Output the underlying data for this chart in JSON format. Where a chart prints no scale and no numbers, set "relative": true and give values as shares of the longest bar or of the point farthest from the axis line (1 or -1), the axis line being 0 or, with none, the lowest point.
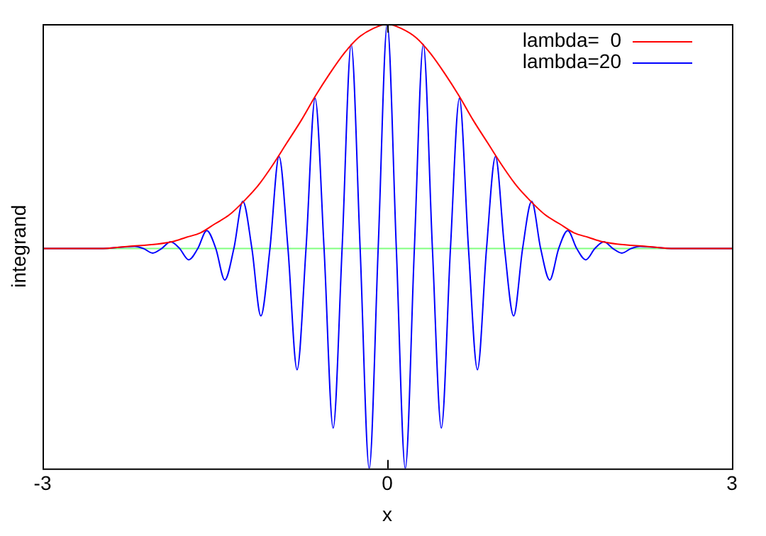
{
  "chart_data": {
    "type": "line",
    "xlabel": "x",
    "ylabel": "integrand",
    "relative": true,
    "xlim": [
      -3,
      3
    ],
    "xticks": [
      -3,
      0,
      3
    ],
    "grid": false,
    "legend": "top right",
    "marker": "none",
    "line_style": "solid",
    "ref_lines": [
      {
        "axis": "y",
        "value": 0,
        "color": "#80ff80"
      }
    ],
    "series": [
      {
        "name": "lambda=  0",
        "color": "#ff0000",
        "x": [
          -3,
          -2.5,
          -2.25,
          -2,
          -1.875,
          -1.75,
          -1.625,
          -1.5,
          -1.375,
          -1.25,
          -1.125,
          -1,
          -0.875,
          -0.75,
          -0.625,
          -0.5,
          -0.375,
          -0.25,
          -0.125,
          0,
          0.125,
          0.25,
          0.375,
          0.5,
          0.625,
          0.75,
          0.875,
          1,
          1.125,
          1.25,
          1.375,
          1.5,
          1.625,
          1.75,
          1.875,
          2,
          2.25,
          2.5,
          3
        ],
        "values": [
          0,
          0,
          0.01,
          0.02,
          0.03,
          0.05,
          0.07,
          0.11,
          0.15,
          0.21,
          0.28,
          0.37,
          0.47,
          0.57,
          0.68,
          0.78,
          0.87,
          0.94,
          0.98,
          1,
          0.98,
          0.94,
          0.87,
          0.78,
          0.68,
          0.57,
          0.47,
          0.37,
          0.28,
          0.21,
          0.15,
          0.11,
          0.07,
          0.05,
          0.03,
          0.02,
          0.01,
          0,
          0
        ]
      },
      {
        "name": "lambda=20",
        "color": "#0000ff",
        "x": [
          -3,
          -2.5,
          -2.199,
          -2.121,
          -2.042,
          -1.964,
          -1.885,
          -1.807,
          -1.728,
          -1.649,
          -1.571,
          -1.492,
          -1.414,
          -1.335,
          -1.257,
          -1.178,
          -1.1,
          -1.021,
          -0.942,
          -0.864,
          -0.785,
          -0.707,
          -0.628,
          -0.55,
          -0.471,
          -0.393,
          -0.314,
          -0.236,
          -0.157,
          -0.079,
          0,
          0.079,
          0.157,
          0.236,
          0.314,
          0.393,
          0.471,
          0.55,
          0.628,
          0.707,
          0.785,
          0.864,
          0.942,
          1.021,
          1.1,
          1.178,
          1.257,
          1.335,
          1.414,
          1.492,
          1.571,
          1.649,
          1.728,
          1.807,
          1.885,
          1.964,
          2.042,
          2.121,
          2.199,
          2.5,
          3
        ],
        "values": [
          0,
          0,
          0.01,
          0,
          -0.02,
          0,
          0.03,
          0,
          -0.05,
          0,
          0.08,
          0,
          -0.14,
          0,
          0.21,
          0,
          -0.3,
          0,
          0.41,
          0,
          -0.54,
          0,
          0.67,
          0,
          -0.8,
          0,
          0.91,
          0,
          -0.98,
          0,
          1,
          0,
          -0.98,
          0,
          0.91,
          0,
          -0.8,
          0,
          0.67,
          0,
          -0.54,
          0,
          0.41,
          0,
          -0.3,
          0,
          0.21,
          0,
          -0.14,
          0,
          0.08,
          0,
          -0.05,
          0,
          0.03,
          0,
          -0.02,
          0,
          0.01,
          0,
          0
        ]
      }
    ]
  }
}
